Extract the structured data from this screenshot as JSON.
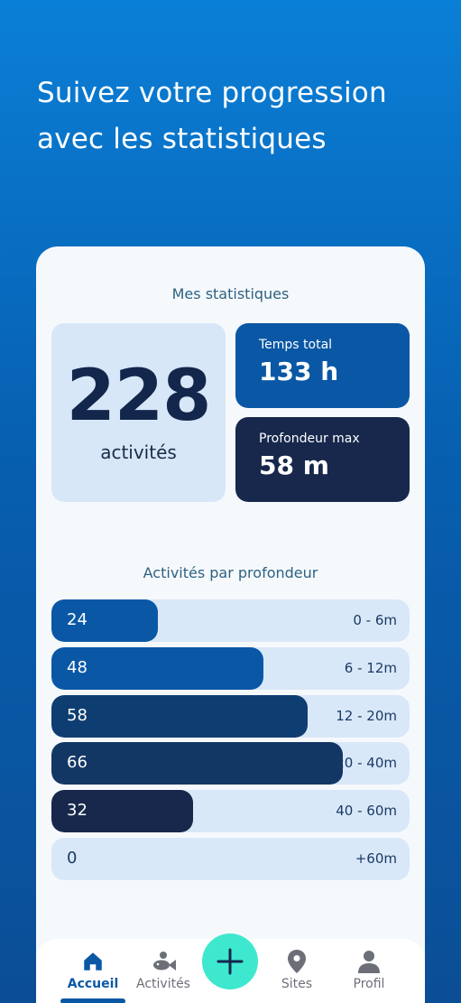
{
  "headline": {
    "line1": "Suivez votre progression",
    "line2": "avec les statistiques"
  },
  "stats": {
    "title": "Mes statistiques",
    "activities_count": "228",
    "activities_label": "activités",
    "total_time_label": "Temps total",
    "total_time_value": "133 h",
    "max_depth_label": "Profondeur max",
    "max_depth_value": "58 m"
  },
  "chart_data": {
    "type": "bar",
    "title": "Activités par profondeur",
    "categories": [
      "0 - 6m",
      "6 - 12m",
      "12 - 20m",
      "20 - 40m",
      "40 - 60m",
      "+60m"
    ],
    "values": [
      24,
      48,
      58,
      66,
      32,
      0
    ],
    "colors": [
      "#0a58a5",
      "#0a58a5",
      "#0e3d72",
      "#133764",
      "#17284c",
      "#d9e8f8"
    ]
  },
  "nav": {
    "items": [
      {
        "label": "Accueil",
        "icon": "home-icon",
        "active": true
      },
      {
        "label": "Activités",
        "icon": "fish-icon",
        "active": false
      },
      {
        "label": "Sites",
        "icon": "location-pin-icon",
        "active": false
      },
      {
        "label": "Profil",
        "icon": "user-icon",
        "active": false
      }
    ],
    "add_icon": "plus-icon"
  },
  "colors": {
    "accent": "#0a58a5",
    "dark": "#17284c",
    "add_button": "#3ee8cf",
    "bar_track": "#d9e8f8"
  }
}
